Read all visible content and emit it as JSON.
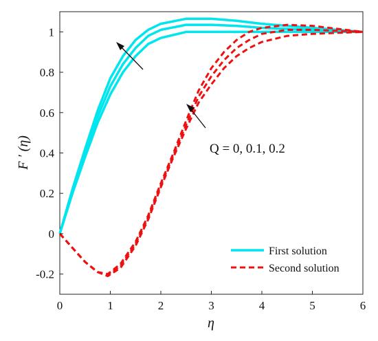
{
  "chart_data": {
    "type": "line",
    "xlabel": "η",
    "ylabel": "F ′ (η)",
    "xlim": [
      0,
      6
    ],
    "ylim": [
      -0.3,
      1.1
    ],
    "xticks": [
      "0",
      "1",
      "2",
      "3",
      "4",
      "5",
      "6"
    ],
    "yticks": [
      "-0.2",
      "0",
      "0.2",
      "0.4",
      "0.6",
      "0.8",
      "1"
    ],
    "grid": false,
    "legend_position": "bottom-right",
    "legend": [
      "First solution",
      "Second solution"
    ],
    "annotation": "Q = 0, 0.1, 0.2",
    "colors": {
      "first": "#00e5ee",
      "second": "#ee1111"
    },
    "series": [
      {
        "group": "First solution",
        "style": "solid",
        "x": [
          0,
          0.25,
          0.5,
          0.75,
          1,
          1.25,
          1.5,
          1.75,
          2,
          2.5,
          3,
          3.5,
          4,
          4.5,
          5,
          6
        ],
        "y": [
          0,
          0.2,
          0.38,
          0.55,
          0.69,
          0.8,
          0.88,
          0.94,
          0.97,
          1.0,
          1.0,
          1.0,
          1.0,
          1.0,
          1.0,
          1.0
        ]
      },
      {
        "group": "First solution",
        "style": "solid",
        "x": [
          0,
          0.25,
          0.5,
          0.75,
          1,
          1.25,
          1.5,
          1.75,
          2,
          2.5,
          3,
          3.5,
          4,
          4.5,
          5,
          6
        ],
        "y": [
          0,
          0.21,
          0.4,
          0.58,
          0.73,
          0.84,
          0.92,
          0.98,
          1.01,
          1.035,
          1.035,
          1.03,
          1.02,
          1.015,
          1.01,
          1.0
        ]
      },
      {
        "group": "First solution",
        "style": "solid",
        "x": [
          0,
          0.25,
          0.5,
          0.75,
          1,
          1.25,
          1.5,
          1.75,
          2,
          2.5,
          3,
          3.5,
          4,
          4.5,
          5,
          6
        ],
        "y": [
          0,
          0.22,
          0.42,
          0.61,
          0.77,
          0.88,
          0.96,
          1.01,
          1.04,
          1.065,
          1.065,
          1.055,
          1.04,
          1.03,
          1.02,
          1.0
        ]
      },
      {
        "group": "Second solution",
        "style": "dashed",
        "x": [
          0,
          0.25,
          0.5,
          0.75,
          0.95,
          1.2,
          1.5,
          1.75,
          2,
          2.25,
          2.5,
          2.75,
          3,
          3.25,
          3.5,
          3.75,
          4,
          4.5,
          5,
          5.5,
          6
        ],
        "y": [
          0,
          -0.07,
          -0.14,
          -0.19,
          -0.21,
          -0.17,
          -0.06,
          0.07,
          0.23,
          0.38,
          0.52,
          0.65,
          0.74,
          0.82,
          0.88,
          0.92,
          0.95,
          0.98,
          0.99,
          0.995,
          1.0
        ]
      },
      {
        "group": "Second solution",
        "style": "dashed",
        "x": [
          0,
          0.25,
          0.5,
          0.75,
          0.95,
          1.2,
          1.5,
          1.75,
          2,
          2.25,
          2.5,
          2.75,
          3,
          3.25,
          3.5,
          3.75,
          4,
          4.5,
          5,
          5.5,
          6
        ],
        "y": [
          0,
          -0.07,
          -0.14,
          -0.19,
          -0.205,
          -0.16,
          -0.05,
          0.08,
          0.24,
          0.39,
          0.54,
          0.68,
          0.78,
          0.86,
          0.92,
          0.96,
          0.99,
          1.01,
          1.01,
          1.005,
          1.0
        ]
      },
      {
        "group": "Second solution",
        "style": "dashed",
        "x": [
          0,
          0.25,
          0.5,
          0.75,
          0.95,
          1.2,
          1.5,
          1.75,
          2,
          2.25,
          2.5,
          2.75,
          3,
          3.25,
          3.5,
          3.75,
          4,
          4.5,
          5,
          5.5,
          6
        ],
        "y": [
          0,
          -0.07,
          -0.14,
          -0.19,
          -0.2,
          -0.15,
          -0.04,
          0.09,
          0.25,
          0.4,
          0.56,
          0.71,
          0.82,
          0.9,
          0.96,
          1.0,
          1.02,
          1.035,
          1.03,
          1.015,
          1.0
        ]
      }
    ]
  }
}
